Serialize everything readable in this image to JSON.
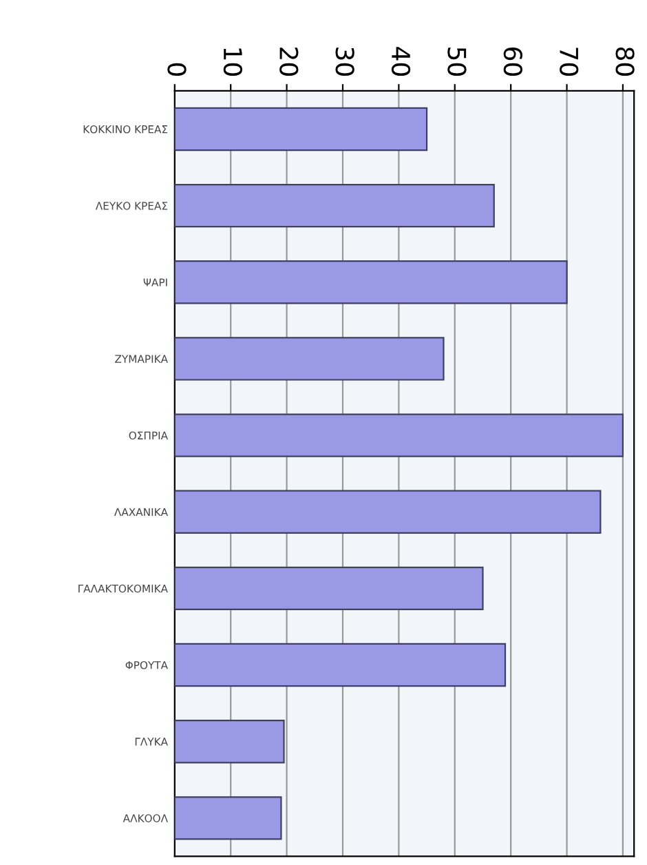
{
  "chart_data": {
    "type": "bar",
    "orientation": "horizontal",
    "categories": [
      "ΚΟΚΚΙΝΟ ΚΡΕΑΣ",
      "ΛΕΥΚΟ ΚΡΕΑΣ",
      "ΨΑΡΙ",
      "ΖΥΜΑΡΙΚΑ",
      "ΟΣΠΡΙΑ",
      "ΛΑΧΑΝΙΚΑ",
      "ΓΑΛΑΚΤΟΚΟΜΙΚΑ",
      "ΦΡΟΥΤΑ",
      "ΓΛΥΚΑ",
      "ΑΛΚΟΟΛ"
    ],
    "values": [
      45,
      57,
      70,
      48,
      80,
      76,
      55,
      59,
      19.5,
      19
    ],
    "color": "#9999e6",
    "xlim": [
      0,
      82
    ],
    "xticks": [
      0,
      10,
      20,
      30,
      40,
      50,
      60,
      70,
      80
    ],
    "grid": "x"
  }
}
